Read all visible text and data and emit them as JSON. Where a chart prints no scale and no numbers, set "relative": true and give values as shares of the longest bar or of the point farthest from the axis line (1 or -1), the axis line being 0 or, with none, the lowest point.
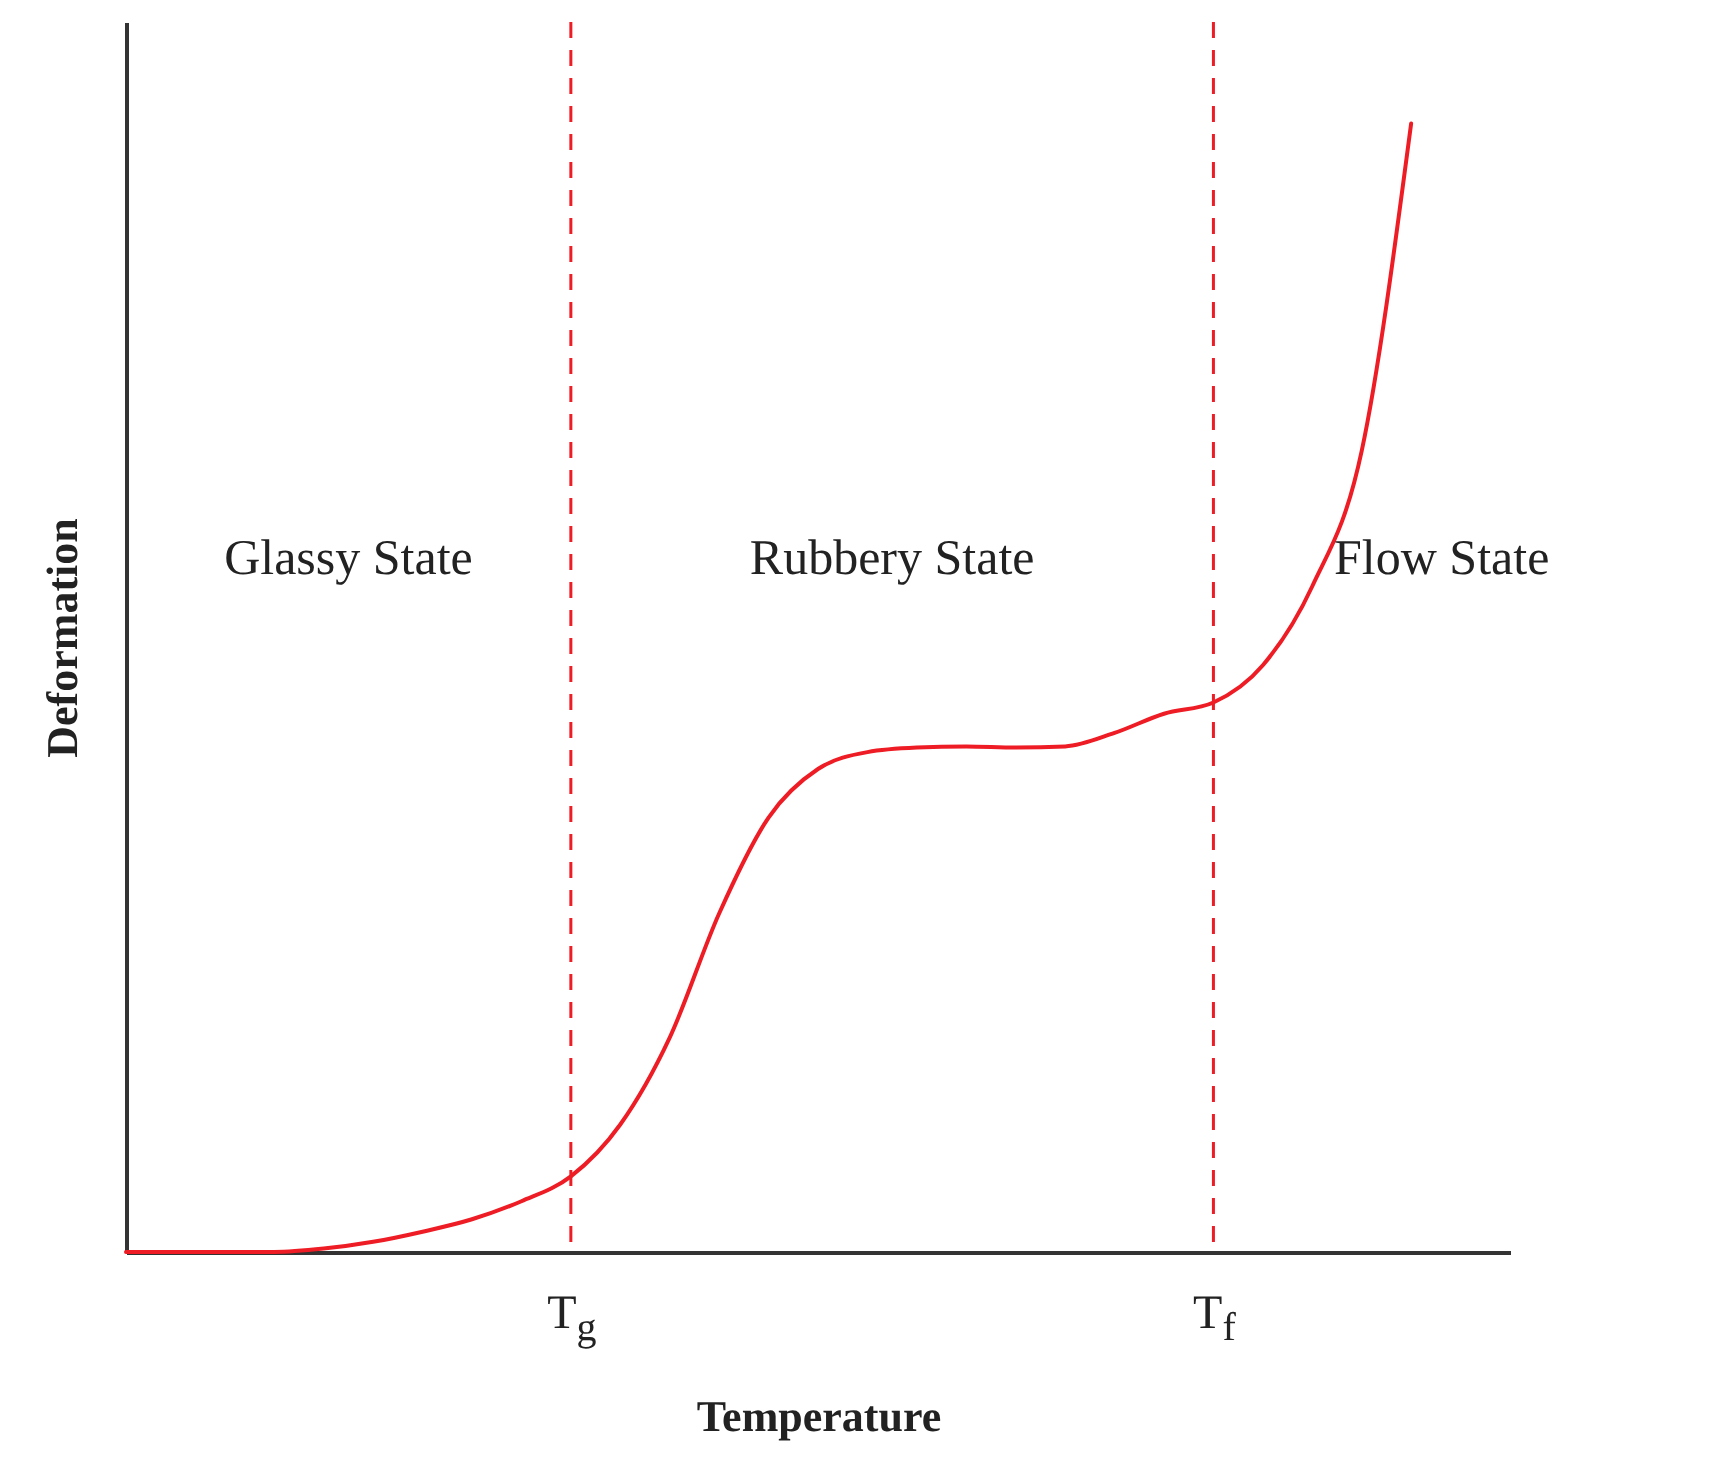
{
  "chart_data": {
    "type": "line",
    "relative": true,
    "xlabel": "Temperature",
    "ylabel": "Deformation",
    "categories": [
      null,
      null,
      null,
      null,
      null,
      null,
      null,
      null,
      null,
      "T$_{g}$",
      null,
      null,
      null,
      null,
      null,
      null,
      null,
      null,
      null,
      null,
      null,
      null,
      "T$_{f}$",
      null,
      null,
      null,
      null,
      null,
      null
    ],
    "series": [
      {
        "color": "#ee1c24",
        "values": [
          0,
          0,
          0,
          0,
          0.003,
          0.009,
          0.018,
          0.029,
          0.045,
          0.067,
          0.113,
          0.19,
          0.3,
          0.385,
          0.428,
          0.443,
          0.447,
          0.448,
          0.447,
          0.448,
          0.46,
          0.477,
          0.487,
          0.52,
          0.59,
          0.71,
          1,
          null,
          null
        ]
      }
    ],
    "ref_lines": [
      {
        "axis": "x",
        "value": "T$_{g}$",
        "color": "#ee1c24",
        "line_style": "dashed"
      },
      {
        "axis": "x",
        "value": "T$_{f}$",
        "color": "#ee1c24",
        "line_style": "dashed"
      }
    ],
    "annotations": [
      "Glassy State",
      "Rubbery State",
      "Flow State"
    ],
    "marker": "none",
    "line_style": "solid",
    "grid": false
  }
}
